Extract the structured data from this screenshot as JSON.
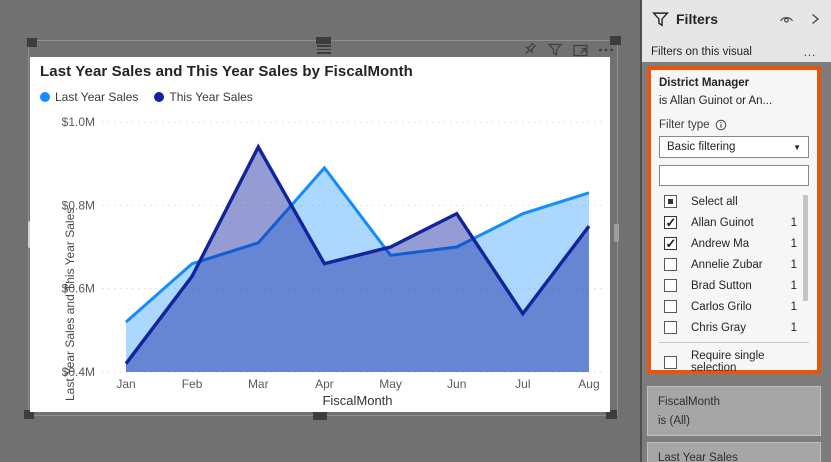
{
  "visual": {
    "title": "Last Year Sales and This Year Sales by FiscalMonth",
    "toolbar": {
      "icons": [
        "pin-icon",
        "filter-icon",
        "focus-mode-icon",
        "more-options-icon"
      ]
    }
  },
  "chart_data": {
    "type": "area",
    "title": "Last Year Sales and This Year Sales by FiscalMonth",
    "x": [
      "Jan",
      "Feb",
      "Mar",
      "Apr",
      "May",
      "Jun",
      "Jul",
      "Aug"
    ],
    "xlabel": "FiscalMonth",
    "ylabel": "Last Year Sales and This Year Sales",
    "ylim": [
      0.4,
      1.0
    ],
    "ytick_values": [
      0.4,
      0.6,
      0.8,
      1.0
    ],
    "ytick_labels": [
      "$0.4M",
      "$0.6M",
      "$0.8M",
      "$1.0M"
    ],
    "grid": "dotted-horizontal",
    "legend_position": "top-left",
    "units": "millions USD",
    "series": [
      {
        "name": "Last Year Sales",
        "color": "#118DFF",
        "fill_opacity": 0.35,
        "values": [
          0.52,
          0.66,
          0.71,
          0.89,
          0.68,
          0.7,
          0.78,
          0.83
        ]
      },
      {
        "name": "This Year Sales",
        "color": "#12239E",
        "fill_opacity": 0.45,
        "values": [
          0.42,
          0.63,
          0.94,
          0.66,
          0.7,
          0.78,
          0.54,
          0.75
        ]
      }
    ]
  },
  "filters_pane": {
    "title": "Filters",
    "section_label": "Filters on this visual",
    "more_glyph": "…",
    "chevron_glyph": "›",
    "district_card": {
      "highlight_color": "#E8550C",
      "field": "District Manager",
      "condition": "is Allan Guinot or An...",
      "filter_type_label": "Filter type",
      "filter_type_value": "Basic filtering",
      "caret_glyph": "▼",
      "search_value": "",
      "items": [
        {
          "label": "Select all",
          "state": "indeterminate",
          "count": ""
        },
        {
          "label": "Allan Guinot",
          "state": "checked",
          "count": "1"
        },
        {
          "label": "Andrew Ma",
          "state": "checked",
          "count": "1"
        },
        {
          "label": "Annelie Zubar",
          "state": "unchecked",
          "count": "1"
        },
        {
          "label": "Brad Sutton",
          "state": "unchecked",
          "count": "1"
        },
        {
          "label": "Carlos Grilo",
          "state": "unchecked",
          "count": "1"
        },
        {
          "label": "Chris Gray",
          "state": "unchecked",
          "count": "1"
        }
      ],
      "require_single_label": "Require single selection"
    },
    "other_cards": [
      {
        "field": "FiscalMonth",
        "condition": "is (All)"
      },
      {
        "field": "Last Year Sales",
        "condition": ""
      }
    ]
  }
}
